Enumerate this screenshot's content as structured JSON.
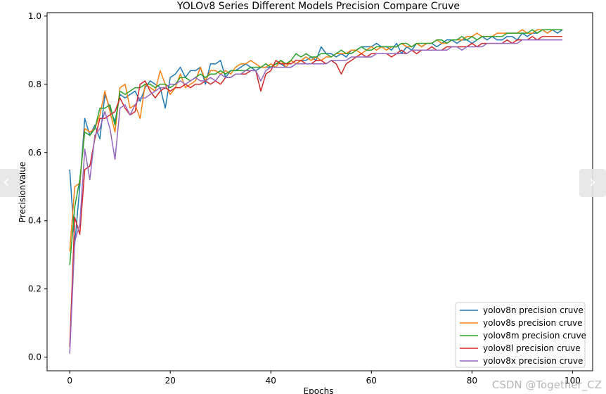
{
  "chart_data": {
    "type": "line",
    "title": "YOLOv8 Series Different Models Precision Compare Cruve",
    "xlabel": "Epochs",
    "ylabel": "PrecisionValue",
    "xlim": [
      -4.5,
      104
    ],
    "ylim": [
      -0.04,
      1.01
    ],
    "x_ticks": [
      0,
      20,
      40,
      60,
      80,
      100
    ],
    "y_ticks": [
      "0.0",
      "0.2",
      "0.4",
      "0.6",
      "0.8",
      "1.0"
    ],
    "grid": false,
    "legend_position": "bottom-right",
    "series": [
      {
        "name": "yolov8n precision cruve",
        "color": "#1f77b4",
        "values": [
          0.55,
          0.33,
          0.5,
          0.7,
          0.65,
          0.68,
          0.64,
          0.77,
          0.73,
          0.69,
          0.77,
          0.76,
          0.77,
          0.78,
          0.75,
          0.79,
          0.81,
          0.8,
          0.79,
          0.73,
          0.82,
          0.83,
          0.85,
          0.82,
          0.84,
          0.84,
          0.85,
          0.8,
          0.86,
          0.86,
          0.87,
          0.82,
          0.84,
          0.84,
          0.85,
          0.86,
          0.85,
          0.84,
          0.85,
          0.85,
          0.85,
          0.86,
          0.86,
          0.85,
          0.85,
          0.86,
          0.87,
          0.87,
          0.88,
          0.87,
          0.91,
          0.89,
          0.89,
          0.88,
          0.89,
          0.88,
          0.9,
          0.9,
          0.91,
          0.91,
          0.91,
          0.92,
          0.91,
          0.91,
          0.9,
          0.92,
          0.89,
          0.91,
          0.9,
          0.92,
          0.91,
          0.92,
          0.92,
          0.91,
          0.92,
          0.93,
          0.93,
          0.92,
          0.93,
          0.93,
          0.92,
          0.93,
          0.94,
          0.93,
          0.94,
          0.93,
          0.93,
          0.94,
          0.94,
          0.93,
          0.95,
          0.94,
          0.95,
          0.95,
          0.96,
          0.95,
          0.96,
          0.95,
          0.96
        ]
      },
      {
        "name": "yolov8s precision cruve",
        "color": "#ff7f0e",
        "values": [
          0.31,
          0.5,
          0.51,
          0.67,
          0.66,
          0.67,
          0.71,
          0.78,
          0.72,
          0.66,
          0.79,
          0.8,
          0.73,
          0.74,
          0.7,
          0.8,
          0.79,
          0.78,
          0.84,
          0.8,
          0.77,
          0.79,
          0.83,
          0.79,
          0.8,
          0.81,
          0.85,
          0.81,
          0.84,
          0.84,
          0.83,
          0.84,
          0.83,
          0.85,
          0.86,
          0.86,
          0.87,
          0.86,
          0.85,
          0.85,
          0.86,
          0.85,
          0.87,
          0.85,
          0.87,
          0.86,
          0.87,
          0.88,
          0.87,
          0.88,
          0.87,
          0.88,
          0.88,
          0.89,
          0.89,
          0.89,
          0.9,
          0.9,
          0.89,
          0.9,
          0.91,
          0.9,
          0.91,
          0.9,
          0.91,
          0.91,
          0.92,
          0.91,
          0.91,
          0.92,
          0.91,
          0.92,
          0.92,
          0.93,
          0.92,
          0.92,
          0.93,
          0.93,
          0.93,
          0.94,
          0.94,
          0.95,
          0.94,
          0.94,
          0.94,
          0.95,
          0.95,
          0.95,
          0.95,
          0.95,
          0.96,
          0.95,
          0.95,
          0.96,
          0.96,
          0.95,
          0.96,
          0.96,
          0.96
        ]
      },
      {
        "name": "yolov8m precision cruve",
        "color": "#2ca02c",
        "values": [
          0.27,
          0.44,
          0.52,
          0.66,
          0.65,
          0.67,
          0.73,
          0.73,
          0.74,
          0.68,
          0.78,
          0.77,
          0.78,
          0.79,
          0.79,
          0.8,
          0.8,
          0.79,
          0.8,
          0.8,
          0.79,
          0.8,
          0.82,
          0.82,
          0.81,
          0.82,
          0.83,
          0.82,
          0.83,
          0.83,
          0.84,
          0.83,
          0.84,
          0.84,
          0.84,
          0.84,
          0.85,
          0.85,
          0.85,
          0.86,
          0.85,
          0.86,
          0.87,
          0.86,
          0.87,
          0.89,
          0.88,
          0.89,
          0.88,
          0.88,
          0.89,
          0.89,
          0.88,
          0.89,
          0.9,
          0.89,
          0.89,
          0.9,
          0.91,
          0.9,
          0.9,
          0.91,
          0.91,
          0.91,
          0.91,
          0.91,
          0.92,
          0.92,
          0.91,
          0.92,
          0.92,
          0.92,
          0.92,
          0.93,
          0.93,
          0.92,
          0.93,
          0.93,
          0.94,
          0.93,
          0.94,
          0.93,
          0.94,
          0.94,
          0.94,
          0.94,
          0.94,
          0.95,
          0.95,
          0.95,
          0.95,
          0.95,
          0.96,
          0.95,
          0.96,
          0.96,
          0.96,
          0.96,
          0.96
        ]
      },
      {
        "name": "yolov8l precision cruve",
        "color": "#d62728",
        "values": [
          0.03,
          0.41,
          0.36,
          0.55,
          0.56,
          0.64,
          0.7,
          0.7,
          0.71,
          0.72,
          0.76,
          0.73,
          0.71,
          0.72,
          0.8,
          0.81,
          0.78,
          0.76,
          0.78,
          0.79,
          0.78,
          0.79,
          0.79,
          0.8,
          0.79,
          0.8,
          0.8,
          0.81,
          0.8,
          0.81,
          0.8,
          0.82,
          0.82,
          0.83,
          0.83,
          0.83,
          0.84,
          0.84,
          0.78,
          0.83,
          0.84,
          0.87,
          0.86,
          0.86,
          0.86,
          0.87,
          0.87,
          0.86,
          0.86,
          0.87,
          0.87,
          0.86,
          0.87,
          0.86,
          0.83,
          0.86,
          0.87,
          0.88,
          0.89,
          0.88,
          0.89,
          0.89,
          0.89,
          0.89,
          0.88,
          0.89,
          0.9,
          0.89,
          0.9,
          0.89,
          0.9,
          0.9,
          0.91,
          0.9,
          0.9,
          0.91,
          0.91,
          0.91,
          0.91,
          0.91,
          0.92,
          0.91,
          0.92,
          0.92,
          0.92,
          0.92,
          0.92,
          0.93,
          0.92,
          0.93,
          0.93,
          0.93,
          0.94,
          0.93,
          0.94,
          0.94,
          0.94,
          0.94,
          0.94
        ]
      },
      {
        "name": "yolov8x precision cruve",
        "color": "#9467bd",
        "values": [
          0.01,
          0.34,
          0.39,
          0.61,
          0.52,
          0.65,
          0.67,
          0.72,
          0.67,
          0.58,
          0.73,
          0.74,
          0.71,
          0.74,
          0.76,
          0.76,
          0.77,
          0.78,
          0.79,
          0.79,
          0.8,
          0.8,
          0.81,
          0.8,
          0.81,
          0.82,
          0.81,
          0.81,
          0.82,
          0.81,
          0.83,
          0.82,
          0.82,
          0.83,
          0.83,
          0.84,
          0.84,
          0.84,
          0.81,
          0.84,
          0.85,
          0.85,
          0.85,
          0.85,
          0.85,
          0.86,
          0.86,
          0.86,
          0.86,
          0.86,
          0.86,
          0.86,
          0.87,
          0.87,
          0.87,
          0.87,
          0.88,
          0.88,
          0.88,
          0.88,
          0.88,
          0.89,
          0.89,
          0.89,
          0.89,
          0.89,
          0.89,
          0.89,
          0.9,
          0.9,
          0.9,
          0.9,
          0.9,
          0.9,
          0.9,
          0.9,
          0.91,
          0.91,
          0.9,
          0.91,
          0.91,
          0.91,
          0.91,
          0.92,
          0.92,
          0.92,
          0.92,
          0.92,
          0.92,
          0.92,
          0.93,
          0.93,
          0.93,
          0.93,
          0.93,
          0.93,
          0.93,
          0.93,
          0.93
        ]
      }
    ]
  },
  "navigation": {
    "prev_icon": "‹",
    "next_icon": "›"
  },
  "watermark": "CSDN @Together_CZ"
}
